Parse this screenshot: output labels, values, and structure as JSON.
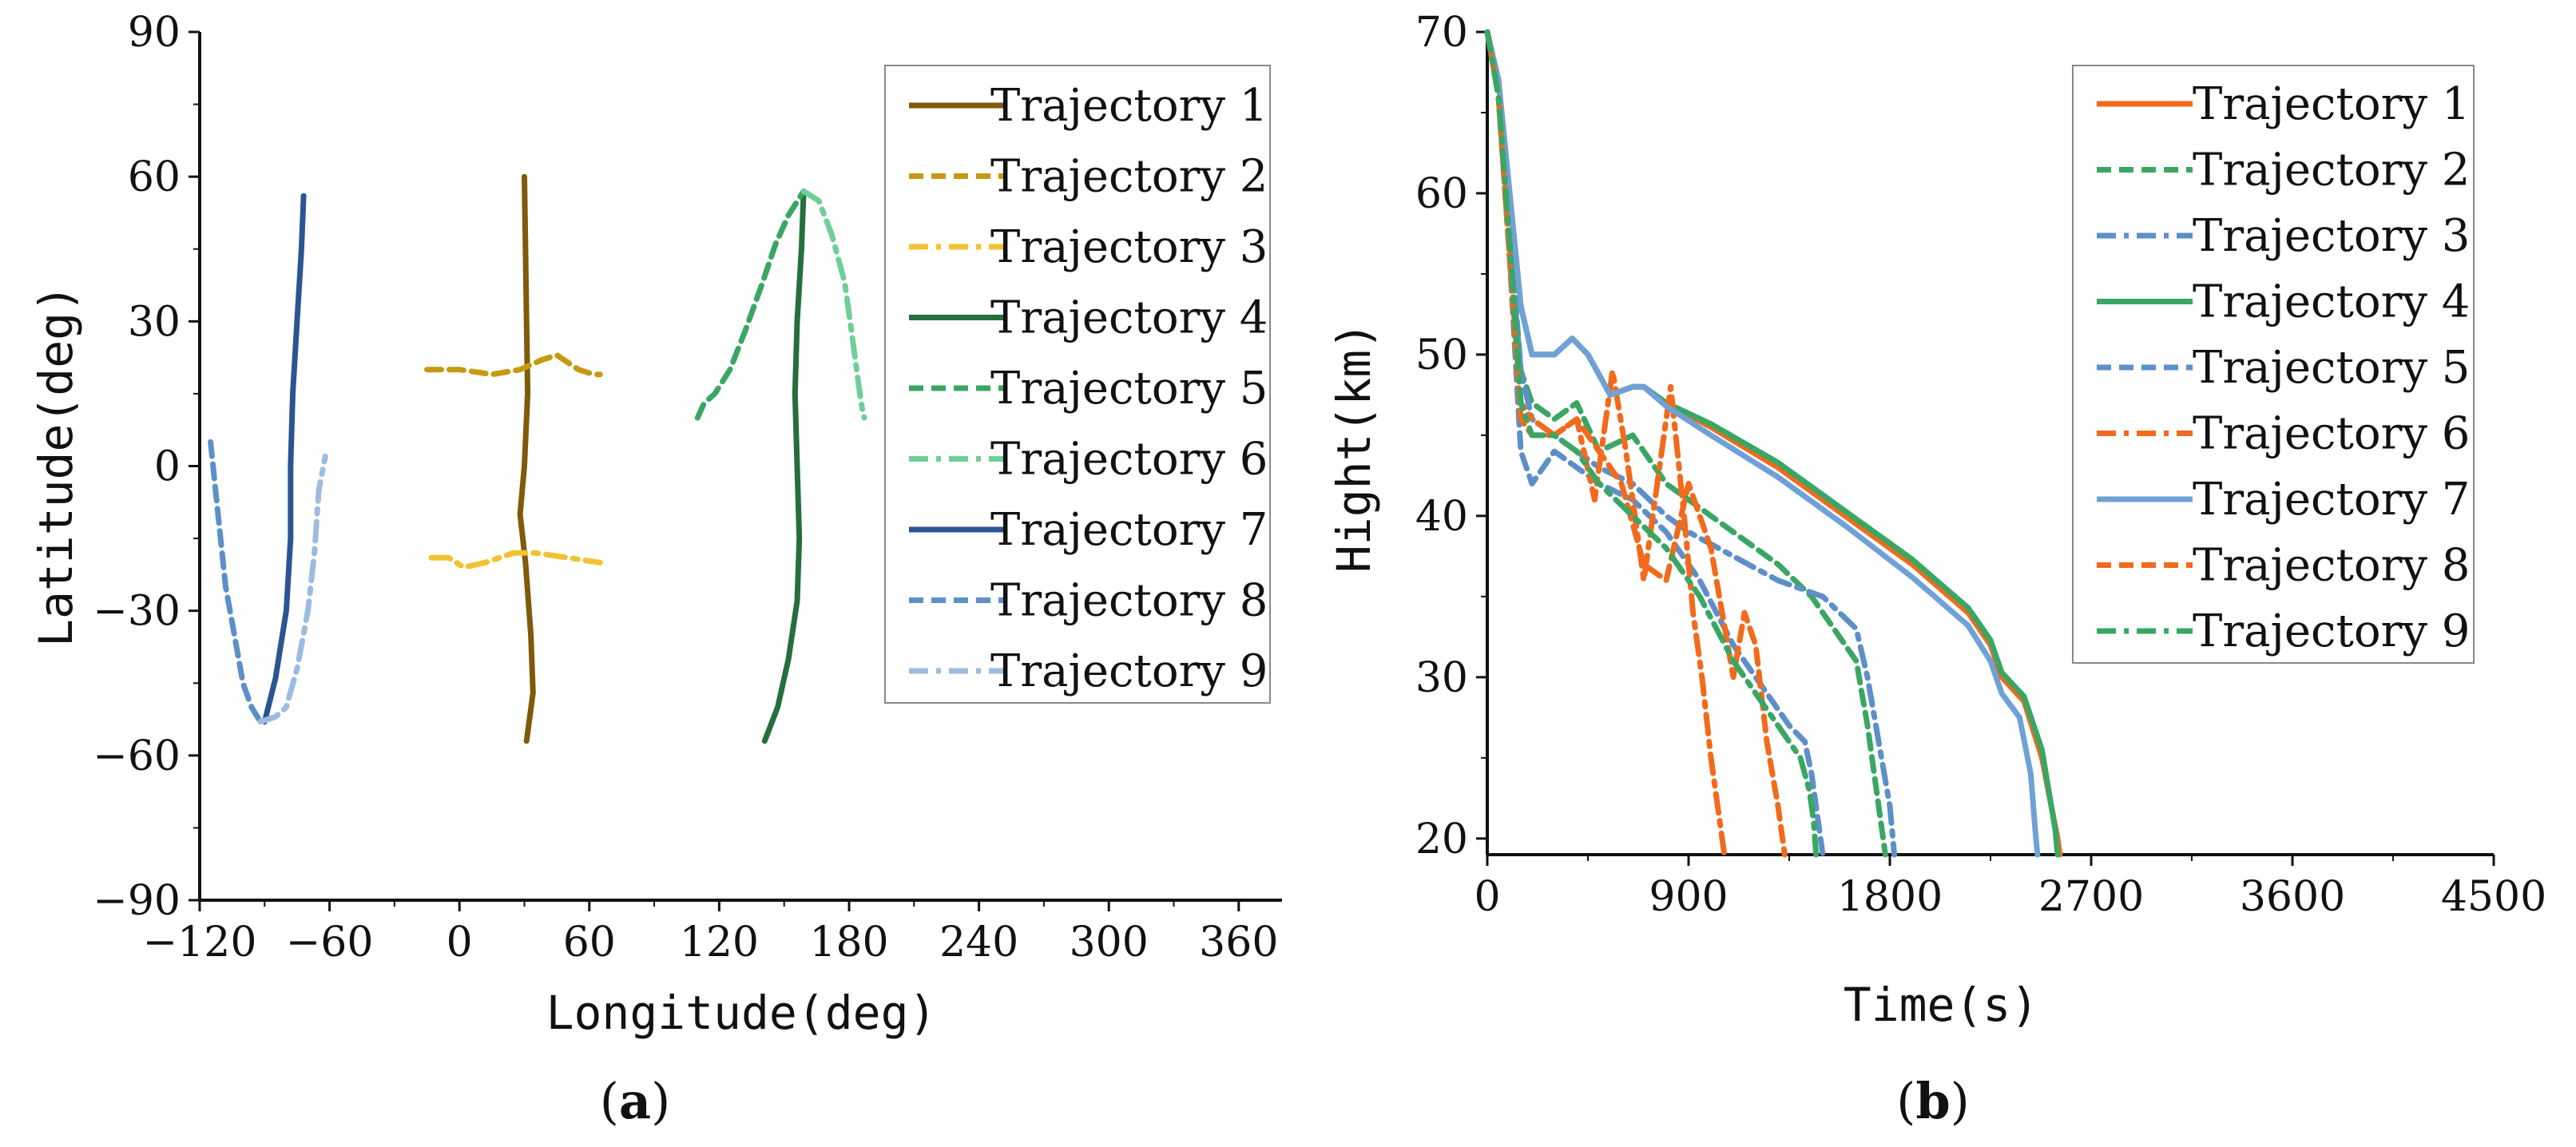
{
  "chart_data": [
    {
      "type": "line",
      "panel_label": "(a)",
      "panel_letter": "a",
      "xlabel": "Longitude(deg)",
      "ylabel": "Latitude(deg)",
      "xlim": [
        -120,
        380
      ],
      "ylim": [
        -90,
        90
      ],
      "xticks": [
        -120,
        -60,
        0,
        60,
        120,
        180,
        240,
        300,
        360
      ],
      "yticks": [
        -90,
        -60,
        -30,
        0,
        30,
        60,
        90
      ],
      "xtick_labels": [
        "−120",
        "−60",
        "0",
        "60",
        "120",
        "180",
        "240",
        "300",
        "360"
      ],
      "ytick_labels": [
        "−90",
        "−60",
        "−30",
        "0",
        "30",
        "60",
        "90"
      ],
      "legend_position": "top-right",
      "series": [
        {
          "name": "Trajectory 1",
          "color": "#7f5a0a",
          "style": "solid",
          "x": [
            30,
            30.5,
            31,
            31.5,
            30,
            28,
            30.5,
            33,
            34,
            31
          ],
          "y": [
            60,
            45,
            30,
            15,
            0,
            -10,
            -20,
            -35,
            -47,
            -57
          ]
        },
        {
          "name": "Trajectory 2",
          "color": "#c59a10",
          "style": "dash",
          "x": [
            -15,
            0,
            15,
            28,
            38,
            45,
            55,
            62,
            65
          ],
          "y": [
            20,
            20,
            19,
            20,
            22,
            23,
            20,
            19,
            19
          ]
        },
        {
          "name": "Trajectory 3",
          "color": "#f2c330",
          "style": "dashdot",
          "x": [
            -13,
            -5,
            2,
            12,
            25,
            35,
            50,
            65
          ],
          "y": [
            -19,
            -19,
            -21,
            -20,
            -18,
            -18,
            -19,
            -20
          ]
        },
        {
          "name": "Trajectory 4",
          "color": "#256f3c",
          "style": "solid",
          "x": [
            159,
            158,
            156,
            155,
            156,
            157,
            156,
            152,
            147,
            141
          ],
          "y": [
            57,
            45,
            30,
            15,
            0,
            -15,
            -28,
            -40,
            -50,
            -57
          ]
        },
        {
          "name": "Trajectory 5",
          "color": "#3aa663",
          "style": "dash",
          "x": [
            110,
            113,
            118,
            125,
            132,
            140,
            146,
            152,
            159
          ],
          "y": [
            10,
            13,
            15,
            20,
            28,
            38,
            46,
            52,
            57
          ]
        },
        {
          "name": "Trajectory 6",
          "color": "#6fcf97",
          "style": "dashdot",
          "x": [
            159,
            166,
            172,
            178,
            182,
            185,
            186,
            187
          ],
          "y": [
            57,
            55,
            48,
            38,
            25,
            15,
            12,
            10
          ]
        },
        {
          "name": "Trajectory 7",
          "color": "#2a5592",
          "style": "solid",
          "x": [
            -72,
            -73,
            -75,
            -77,
            -78,
            -78,
            -80,
            -85,
            -90
          ],
          "y": [
            56,
            45,
            30,
            15,
            0,
            -15,
            -30,
            -44,
            -53
          ]
        },
        {
          "name": "Trajectory 8",
          "color": "#5d8fc9",
          "style": "dash",
          "x": [
            -115,
            -112,
            -108,
            -104,
            -100,
            -96,
            -92
          ],
          "y": [
            5,
            -8,
            -25,
            -35,
            -45,
            -50,
            -53
          ]
        },
        {
          "name": "Trajectory 9",
          "color": "#9bbcdf",
          "style": "dashdot",
          "x": [
            -92,
            -85,
            -80,
            -75,
            -70,
            -67,
            -65,
            -62
          ],
          "y": [
            -53,
            -52,
            -50,
            -42,
            -30,
            -18,
            -5,
            2
          ]
        }
      ]
    },
    {
      "type": "line",
      "panel_label": "(b)",
      "panel_letter": "b",
      "xlabel": "Time(s)",
      "ylabel": "Hight(km)",
      "xlim": [
        0,
        4500
      ],
      "ylim": [
        19,
        70
      ],
      "xticks": [
        0,
        900,
        1800,
        2700,
        3600,
        4500
      ],
      "yticks": [
        20,
        30,
        40,
        50,
        60,
        70
      ],
      "xtick_labels": [
        "0",
        "900",
        "1800",
        "2700",
        "3600",
        "4500"
      ],
      "ytick_labels": [
        "20",
        "30",
        "40",
        "50",
        "60",
        "70"
      ],
      "legend_position": "top-right",
      "series": [
        {
          "name": "Trajectory 1",
          "color": "#f26a1b",
          "style": "solid",
          "x": [
            0,
            50,
            100,
            150,
            200,
            300,
            380,
            450,
            550,
            650,
            700,
            800,
            1000,
            1300,
            1600,
            1900,
            2150,
            2250,
            2300,
            2400,
            2480,
            2550,
            2560
          ],
          "y": [
            70,
            67,
            60,
            53,
            50,
            50,
            51,
            50,
            47.5,
            48,
            48,
            47,
            45.5,
            43,
            40,
            37,
            34,
            32,
            30,
            28.5,
            25,
            20,
            19
          ]
        },
        {
          "name": "Trajectory 2",
          "color": "#3aa663",
          "style": "dash",
          "x": [
            0,
            50,
            100,
            150,
            200,
            300,
            400,
            500,
            650,
            800,
            900,
            1100,
            1300,
            1450,
            1550,
            1650,
            1700,
            1750,
            1780
          ],
          "y": [
            70,
            66,
            58,
            49,
            47,
            46,
            47,
            44,
            45,
            42,
            41,
            39,
            37,
            35,
            33,
            31,
            27,
            22,
            19
          ]
        },
        {
          "name": "Trajectory 3",
          "color": "#5d8fc9",
          "style": "dashdot",
          "x": [
            0,
            50,
            100,
            150,
            200,
            300,
            400,
            500,
            650,
            800,
            900,
            1100,
            1300,
            1500,
            1650,
            1700,
            1750,
            1800,
            1820
          ],
          "y": [
            70,
            66,
            57,
            49,
            46,
            45,
            44,
            43,
            42,
            40,
            39,
            37.5,
            36,
            35,
            33,
            30,
            26,
            22,
            19
          ]
        },
        {
          "name": "Trajectory 4",
          "color": "#3aa663",
          "style": "solid",
          "x": [
            0,
            50,
            100,
            150,
            200,
            300,
            380,
            450,
            550,
            650,
            700,
            800,
            1000,
            1300,
            1600,
            1900,
            2150,
            2250,
            2300,
            2400,
            2480,
            2540,
            2550
          ],
          "y": [
            70,
            67,
            60,
            53,
            50,
            50,
            51,
            50,
            47.5,
            48,
            48,
            47,
            45.7,
            43.3,
            40.3,
            37.3,
            34.3,
            32.3,
            30.3,
            28.8,
            25.5,
            20.5,
            19
          ]
        },
        {
          "name": "Trajectory 5",
          "color": "#5d8fc9",
          "style": "dash",
          "x": [
            0,
            50,
            100,
            150,
            200,
            300,
            400,
            500,
            650,
            800,
            950,
            1100,
            1250,
            1350,
            1420,
            1450,
            1480,
            1500
          ],
          "y": [
            70,
            66,
            56,
            44,
            42,
            44,
            43,
            42,
            41,
            39,
            36,
            32,
            29,
            27,
            26,
            24,
            21,
            19
          ]
        },
        {
          "name": "Trajectory 6",
          "color": "#f26a1b",
          "style": "dashdot",
          "x": [
            0,
            50,
            100,
            150,
            200,
            300,
            400,
            480,
            560,
            620,
            700,
            760,
            820,
            880,
            920,
            960,
            1000,
            1040,
            1060
          ],
          "y": [
            70,
            66,
            56,
            47,
            46,
            45,
            46,
            41,
            49,
            44,
            36,
            42,
            48,
            40,
            34,
            30,
            25,
            21,
            19
          ]
        },
        {
          "name": "Trajectory 7",
          "color": "#6fa1d6",
          "style": "solid",
          "x": [
            0,
            50,
            100,
            150,
            200,
            300,
            380,
            450,
            550,
            650,
            700,
            800,
            1000,
            1300,
            1600,
            1900,
            2150,
            2250,
            2300,
            2380,
            2430,
            2450,
            2460
          ],
          "y": [
            70,
            67,
            60,
            53,
            50,
            50,
            51,
            50,
            47.5,
            48,
            48,
            46.8,
            45,
            42.4,
            39.4,
            36.2,
            33.2,
            31,
            29,
            27.5,
            24,
            20.5,
            19
          ]
        },
        {
          "name": "Trajectory 8",
          "color": "#f26a1b",
          "style": "dash",
          "x": [
            0,
            50,
            100,
            150,
            200,
            300,
            400,
            500,
            600,
            700,
            800,
            900,
            1000,
            1100,
            1150,
            1200,
            1250,
            1300,
            1330
          ],
          "y": [
            70,
            66,
            56,
            46,
            45,
            45,
            46,
            44,
            42,
            37,
            36,
            42,
            38,
            30,
            34,
            32,
            26,
            22,
            19
          ]
        },
        {
          "name": "Trajectory 9",
          "color": "#3aa663",
          "style": "dashdot",
          "x": [
            0,
            50,
            100,
            150,
            200,
            300,
            400,
            500,
            650,
            800,
            950,
            1100,
            1250,
            1350,
            1400,
            1440,
            1460,
            1470
          ],
          "y": [
            70,
            66,
            57,
            47,
            45,
            45,
            44,
            42,
            40,
            38,
            35,
            31,
            28,
            26,
            25,
            23,
            21,
            19
          ]
        }
      ]
    }
  ]
}
